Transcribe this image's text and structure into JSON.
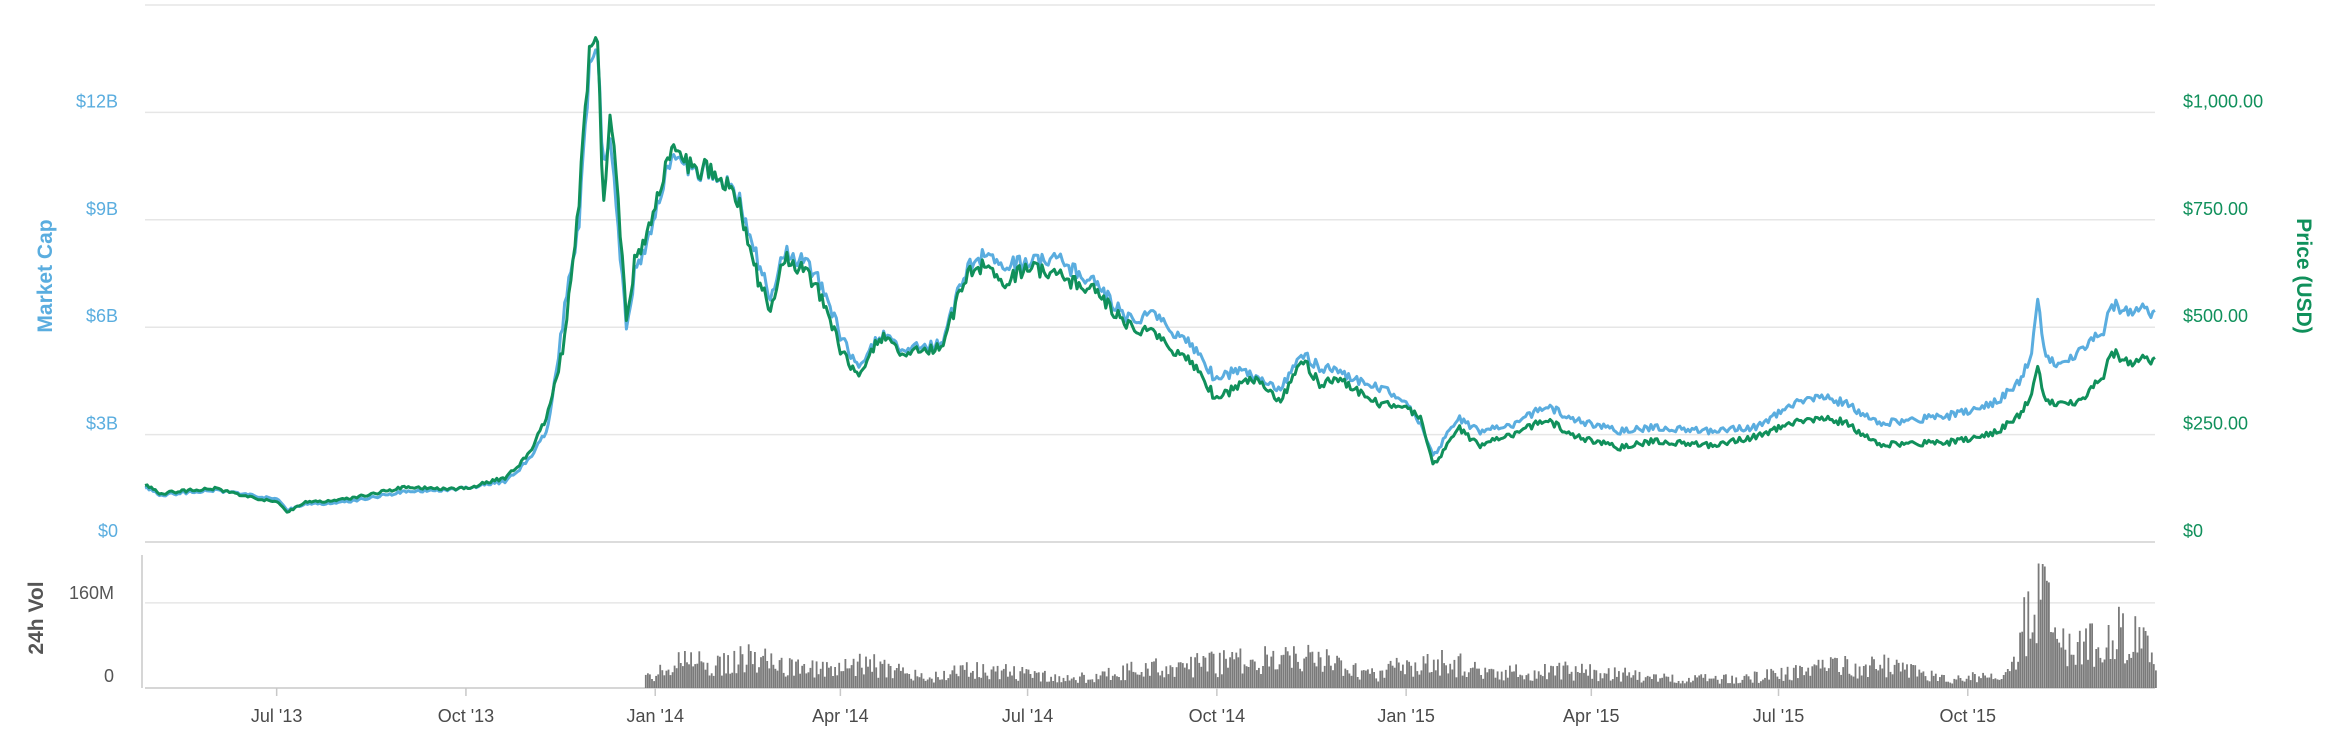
{
  "chart_data": {
    "type": "line",
    "title": "",
    "x_range": [
      "2013-04-28",
      "2015-12-31"
    ],
    "x_tick_labels": [
      "Jul '13",
      "Oct '13",
      "Jan '14",
      "Apr '14",
      "Jul '14",
      "Oct '14",
      "Jan '15",
      "Apr '15",
      "Jul '15",
      "Oct '15"
    ],
    "x_tick_dates": [
      "2013-07-01",
      "2013-10-01",
      "2014-01-01",
      "2014-04-01",
      "2014-07-01",
      "2014-10-01",
      "2015-01-01",
      "2015-04-01",
      "2015-07-01",
      "2015-10-01"
    ],
    "y_left": {
      "label": "Market Cap",
      "tick_labels": [
        "$0",
        "$3B",
        "$6B",
        "$9B",
        "$12B"
      ],
      "ticks": [
        0,
        3,
        6,
        9,
        12
      ],
      "range": [
        0,
        15
      ],
      "unit": "billion USD",
      "color": "#5aaddf"
    },
    "y_right": {
      "label": "Price (USD)",
      "tick_labels": [
        "$0",
        "$250.00",
        "$500.00",
        "$750.00",
        "$1,000.00"
      ],
      "ticks": [
        0,
        250,
        500,
        750,
        1000
      ],
      "range": [
        0,
        1250
      ],
      "color": "#10905b"
    },
    "volume_panel": {
      "label": "24h Vol",
      "tick_labels": [
        "0",
        "160M"
      ],
      "ticks": [
        0,
        160
      ],
      "range": [
        0,
        250
      ],
      "unit": "million USD",
      "color": "#7a7a7a"
    },
    "grid": true,
    "series": [
      {
        "name": "Market Cap",
        "axis": "left",
        "color": "#5aaddf",
        "points": [
          [
            "2013-04-28",
            1.55
          ],
          [
            "2013-05-05",
            1.3
          ],
          [
            "2013-05-12",
            1.35
          ],
          [
            "2013-06-01",
            1.45
          ],
          [
            "2013-06-15",
            1.35
          ],
          [
            "2013-07-01",
            1.2
          ],
          [
            "2013-07-06",
            0.9
          ],
          [
            "2013-07-15",
            1.05
          ],
          [
            "2013-08-01",
            1.1
          ],
          [
            "2013-09-01",
            1.4
          ],
          [
            "2013-10-01",
            1.5
          ],
          [
            "2013-10-20",
            1.7
          ],
          [
            "2013-11-01",
            2.3
          ],
          [
            "2013-11-10",
            3.2
          ],
          [
            "2013-11-18",
            6.5
          ],
          [
            "2013-11-25",
            9.0
          ],
          [
            "2013-11-30",
            13.0
          ],
          [
            "2013-12-04",
            13.5
          ],
          [
            "2013-12-07",
            10.5
          ],
          [
            "2013-12-10",
            11.0
          ],
          [
            "2013-12-13",
            9.5
          ],
          [
            "2013-12-18",
            6.0
          ],
          [
            "2013-12-22",
            7.5
          ],
          [
            "2014-01-01",
            9.0
          ],
          [
            "2014-01-05",
            10.0
          ],
          [
            "2014-01-10",
            11.0
          ],
          [
            "2014-01-15",
            10.5
          ],
          [
            "2014-02-01",
            10.3
          ],
          [
            "2014-02-10",
            9.7
          ],
          [
            "2014-02-20",
            7.8
          ],
          [
            "2014-02-26",
            6.8
          ],
          [
            "2014-03-05",
            8.2
          ],
          [
            "2014-03-20",
            7.5
          ],
          [
            "2014-04-01",
            5.8
          ],
          [
            "2014-04-10",
            4.8
          ],
          [
            "2014-04-20",
            5.8
          ],
          [
            "2014-05-01",
            5.4
          ],
          [
            "2014-05-20",
            5.5
          ],
          [
            "2014-06-01",
            7.6
          ],
          [
            "2014-06-10",
            8.1
          ],
          [
            "2014-06-20",
            7.7
          ],
          [
            "2014-07-01",
            7.8
          ],
          [
            "2014-07-15",
            7.9
          ],
          [
            "2014-08-01",
            7.3
          ],
          [
            "2014-08-20",
            6.2
          ],
          [
            "2014-09-01",
            6.3
          ],
          [
            "2014-09-20",
            5.4
          ],
          [
            "2014-10-01",
            4.5
          ],
          [
            "2014-10-10",
            4.8
          ],
          [
            "2014-10-20",
            4.6
          ],
          [
            "2014-11-01",
            4.3
          ],
          [
            "2014-11-12",
            5.2
          ],
          [
            "2014-11-20",
            4.9
          ],
          [
            "2014-12-01",
            4.7
          ],
          [
            "2014-12-20",
            4.3
          ],
          [
            "2015-01-01",
            3.9
          ],
          [
            "2015-01-08",
            3.3
          ],
          [
            "2015-01-14",
            2.4
          ],
          [
            "2015-01-20",
            2.9
          ],
          [
            "2015-01-26",
            3.5
          ],
          [
            "2015-02-05",
            3.1
          ],
          [
            "2015-02-20",
            3.2
          ],
          [
            "2015-03-10",
            3.8
          ],
          [
            "2015-03-25",
            3.4
          ],
          [
            "2015-04-15",
            3.1
          ],
          [
            "2015-05-01",
            3.2
          ],
          [
            "2015-06-01",
            3.1
          ],
          [
            "2015-06-20",
            3.2
          ],
          [
            "2015-07-10",
            3.9
          ],
          [
            "2015-07-20",
            4.1
          ],
          [
            "2015-08-01",
            3.9
          ],
          [
            "2015-08-20",
            3.3
          ],
          [
            "2015-09-01",
            3.4
          ],
          [
            "2015-09-20",
            3.5
          ],
          [
            "2015-10-15",
            3.9
          ],
          [
            "2015-10-25",
            4.4
          ],
          [
            "2015-11-01",
            5.2
          ],
          [
            "2015-11-04",
            6.8
          ],
          [
            "2015-11-08",
            5.2
          ],
          [
            "2015-11-15",
            4.9
          ],
          [
            "2015-11-25",
            5.4
          ],
          [
            "2015-12-05",
            5.8
          ],
          [
            "2015-12-10",
            6.6
          ],
          [
            "2015-12-20",
            6.5
          ],
          [
            "2015-12-31",
            6.4
          ]
        ]
      },
      {
        "name": "Price (USD)",
        "axis": "right",
        "color": "#10905b",
        "points": [
          [
            "2013-04-28",
            135
          ],
          [
            "2013-05-05",
            112
          ],
          [
            "2013-05-12",
            117
          ],
          [
            "2013-06-01",
            125
          ],
          [
            "2013-06-15",
            108
          ],
          [
            "2013-07-01",
            93
          ],
          [
            "2013-07-06",
            70
          ],
          [
            "2013-07-15",
            92
          ],
          [
            "2013-08-01",
            98
          ],
          [
            "2013-09-01",
            127
          ],
          [
            "2013-10-01",
            124
          ],
          [
            "2013-10-20",
            150
          ],
          [
            "2013-11-01",
            205
          ],
          [
            "2013-11-10",
            300
          ],
          [
            "2013-11-18",
            470
          ],
          [
            "2013-11-25",
            800
          ],
          [
            "2013-11-30",
            1120
          ],
          [
            "2013-12-04",
            1150
          ],
          [
            "2013-12-07",
            780
          ],
          [
            "2013-12-10",
            970
          ],
          [
            "2013-12-13",
            870
          ],
          [
            "2013-12-18",
            520
          ],
          [
            "2013-12-22",
            650
          ],
          [
            "2014-01-01",
            770
          ],
          [
            "2014-01-05",
            850
          ],
          [
            "2014-01-10",
            940
          ],
          [
            "2014-01-15",
            880
          ],
          [
            "2014-02-01",
            860
          ],
          [
            "2014-02-10",
            800
          ],
          [
            "2014-02-20",
            610
          ],
          [
            "2014-02-26",
            540
          ],
          [
            "2014-03-05",
            670
          ],
          [
            "2014-03-20",
            600
          ],
          [
            "2014-04-01",
            450
          ],
          [
            "2014-04-10",
            380
          ],
          [
            "2014-04-20",
            480
          ],
          [
            "2014-05-01",
            440
          ],
          [
            "2014-05-20",
            450
          ],
          [
            "2014-06-01",
            620
          ],
          [
            "2014-06-10",
            650
          ],
          [
            "2014-06-20",
            600
          ],
          [
            "2014-07-01",
            640
          ],
          [
            "2014-07-15",
            620
          ],
          [
            "2014-08-01",
            590
          ],
          [
            "2014-08-20",
            500
          ],
          [
            "2014-09-01",
            480
          ],
          [
            "2014-09-20",
            410
          ],
          [
            "2014-10-01",
            330
          ],
          [
            "2014-10-10",
            360
          ],
          [
            "2014-10-20",
            380
          ],
          [
            "2014-11-01",
            330
          ],
          [
            "2014-11-12",
            420
          ],
          [
            "2014-11-20",
            370
          ],
          [
            "2014-12-01",
            375
          ],
          [
            "2014-12-20",
            320
          ],
          [
            "2015-01-01",
            315
          ],
          [
            "2015-01-08",
            290
          ],
          [
            "2015-01-14",
            180
          ],
          [
            "2015-01-20",
            215
          ],
          [
            "2015-01-26",
            270
          ],
          [
            "2015-02-05",
            225
          ],
          [
            "2015-02-20",
            245
          ],
          [
            "2015-03-10",
            285
          ],
          [
            "2015-03-25",
            245
          ],
          [
            "2015-04-15",
            220
          ],
          [
            "2015-05-01",
            235
          ],
          [
            "2015-06-01",
            225
          ],
          [
            "2015-06-20",
            245
          ],
          [
            "2015-07-10",
            280
          ],
          [
            "2015-07-20",
            290
          ],
          [
            "2015-08-01",
            280
          ],
          [
            "2015-08-20",
            225
          ],
          [
            "2015-09-01",
            230
          ],
          [
            "2015-09-20",
            230
          ],
          [
            "2015-10-15",
            255
          ],
          [
            "2015-10-25",
            290
          ],
          [
            "2015-11-01",
            340
          ],
          [
            "2015-11-04",
            410
          ],
          [
            "2015-11-08",
            330
          ],
          [
            "2015-11-15",
            320
          ],
          [
            "2015-11-25",
            330
          ],
          [
            "2015-12-05",
            380
          ],
          [
            "2015-12-10",
            440
          ],
          [
            "2015-12-20",
            420
          ],
          [
            "2015-12-31",
            425
          ]
        ]
      }
    ],
    "volume": {
      "name": "24h Vol",
      "color": "#7a7a7a",
      "start": "2013-12-27",
      "points": [
        [
          "2013-12-27",
          20
        ],
        [
          "2014-01-10",
          55
        ],
        [
          "2014-02-10",
          65
        ],
        [
          "2014-02-25",
          75
        ],
        [
          "2014-03-15",
          40
        ],
        [
          "2014-04-10",
          60
        ],
        [
          "2014-05-10",
          25
        ],
        [
          "2014-06-10",
          45
        ],
        [
          "2014-07-20",
          20
        ],
        [
          "2014-08-20",
          40
        ],
        [
          "2014-10-05",
          60
        ],
        [
          "2014-11-12",
          75
        ],
        [
          "2014-12-15",
          30
        ],
        [
          "2015-01-14",
          70
        ],
        [
          "2015-02-10",
          35
        ],
        [
          "2015-03-20",
          40
        ],
        [
          "2015-04-20",
          30
        ],
        [
          "2015-05-20",
          20
        ],
        [
          "2015-06-20",
          25
        ],
        [
          "2015-07-20",
          45
        ],
        [
          "2015-08-20",
          55
        ],
        [
          "2015-09-20",
          20
        ],
        [
          "2015-10-20",
          30
        ],
        [
          "2015-11-04",
          230
        ],
        [
          "2015-11-20",
          80
        ],
        [
          "2015-12-10",
          130
        ],
        [
          "2015-12-31",
          90
        ]
      ]
    }
  }
}
